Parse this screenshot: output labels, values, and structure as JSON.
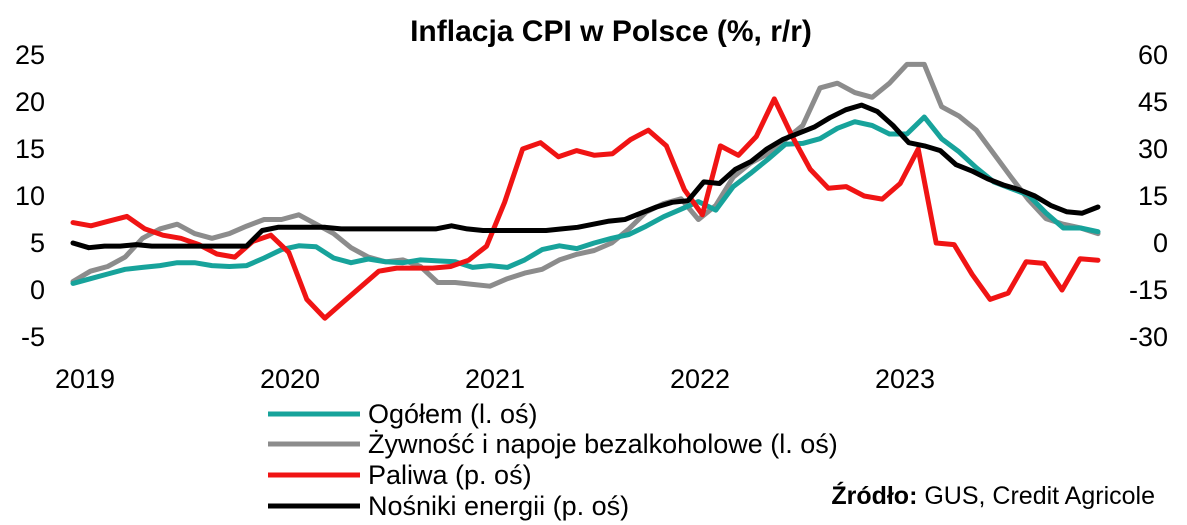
{
  "chart_data": {
    "type": "line",
    "title": "Inflacja CPI w Polsce (%, r/r)",
    "x_labels": [
      "2019",
      "2020",
      "2021",
      "2022",
      "2023"
    ],
    "x_start": 2019.0,
    "x_end": 2024.0,
    "y_left": {
      "min": -5,
      "max": 25,
      "ticks": [
        "25",
        "20",
        "15",
        "10",
        "5",
        "0",
        "-5"
      ]
    },
    "y_right": {
      "min": -30,
      "max": 60,
      "ticks": [
        "60",
        "45",
        "30",
        "15",
        "0",
        "-15",
        "-30"
      ]
    },
    "series": [
      {
        "name": "Ogółem (l. oś)",
        "axis": "left",
        "color": "#17a39b",
        "values": [
          0.7,
          1.2,
          1.7,
          2.2,
          2.4,
          2.6,
          2.9,
          2.9,
          2.6,
          2.5,
          2.6,
          3.4,
          4.3,
          4.7,
          4.6,
          3.4,
          2.9,
          3.3,
          3.0,
          2.9,
          3.2,
          3.1,
          3.0,
          2.4,
          2.6,
          2.4,
          3.2,
          4.3,
          4.7,
          4.4,
          5.0,
          5.5,
          5.9,
          6.8,
          7.8,
          8.6,
          9.4,
          8.5,
          11.0,
          12.4,
          13.9,
          15.5,
          15.6,
          16.1,
          17.2,
          17.9,
          17.5,
          16.6,
          16.6,
          18.4,
          16.1,
          14.7,
          13.0,
          11.5,
          10.8,
          10.1,
          8.2,
          6.6,
          6.6,
          6.2
        ]
      },
      {
        "name": "Żywność i napoje bezalkoholowe (l. oś)",
        "axis": "left",
        "color": "#8c8c8c",
        "values": [
          0.9,
          2.0,
          2.5,
          3.5,
          5.5,
          6.5,
          7.0,
          6.0,
          5.5,
          6.0,
          6.8,
          7.5,
          7.5,
          8.0,
          7.0,
          6.0,
          4.5,
          3.5,
          3.0,
          3.2,
          2.5,
          0.8,
          0.8,
          0.6,
          0.4,
          1.2,
          1.8,
          2.2,
          3.2,
          3.8,
          4.2,
          5.0,
          6.5,
          8.3,
          9.2,
          9.7,
          7.5,
          9.0,
          12.0,
          13.5,
          14.5,
          16.0,
          17.5,
          21.5,
          22.0,
          21.0,
          20.5,
          22.0,
          24.0,
          24.0,
          19.5,
          18.5,
          17.0,
          14.5,
          12.0,
          9.6,
          7.6,
          7.0,
          6.6,
          6.0
        ]
      },
      {
        "name": "Paliwa (p. oś)",
        "axis": "right",
        "color": "#f01414",
        "values": [
          6.5,
          5.5,
          7.0,
          8.5,
          4.5,
          2.5,
          1.5,
          -0.5,
          -3.5,
          -4.5,
          0.5,
          2.5,
          -3.0,
          -18.0,
          -24.0,
          -19.0,
          -14.0,
          -9.0,
          -8.0,
          -8.0,
          -8.0,
          -7.5,
          -5.5,
          -1.0,
          13.0,
          30.0,
          32.0,
          27.5,
          29.5,
          28.0,
          28.5,
          33.0,
          36.0,
          31.0,
          17.0,
          9.0,
          31.0,
          28.0,
          34.0,
          46.0,
          34.0,
          23.5,
          17.5,
          18.0,
          15.0,
          14.0,
          19.0,
          30.0,
          0.0,
          -0.5,
          -10.0,
          -18.0,
          -16.0,
          -6.0,
          -6.5,
          -15.0,
          -5.0,
          -5.5
        ]
      },
      {
        "name": "Nośniki energii (p. oś)",
        "axis": "right",
        "color": "#000000",
        "values": [
          0.0,
          -1.5,
          -1.0,
          -1.0,
          -0.5,
          -1.0,
          -1.0,
          -1.0,
          -1.0,
          -1.0,
          -1.0,
          -1.0,
          4.0,
          5.0,
          5.0,
          5.0,
          5.0,
          4.5,
          4.5,
          4.5,
          4.5,
          4.5,
          4.5,
          4.5,
          5.5,
          4.5,
          4.0,
          4.0,
          4.0,
          4.0,
          4.0,
          4.5,
          5.0,
          6.0,
          7.0,
          7.5,
          9.5,
          11.5,
          13.0,
          13.5,
          19.5,
          19.0,
          23.5,
          26.0,
          30.0,
          33.0,
          35.0,
          37.0,
          40.0,
          42.5,
          44.0,
          42.0,
          37.5,
          32.0,
          31.0,
          29.5,
          25.0,
          23.0,
          20.5,
          18.5,
          17.0,
          15.0,
          12.0,
          10.0,
          9.5,
          11.5
        ]
      }
    ]
  },
  "legend": {
    "items": [
      {
        "label": "Ogółem (l. oś)",
        "color": "#17a39b"
      },
      {
        "label": "Żywność i napoje bezalkoholowe (l. oś)",
        "color": "#8c8c8c"
      },
      {
        "label": "Paliwa (p. oś)",
        "color": "#f01414"
      },
      {
        "label": "Nośniki energii (p. oś)",
        "color": "#000000"
      }
    ]
  },
  "source": {
    "label": "Źródło:",
    "text": " GUS, Credit Agricole"
  }
}
